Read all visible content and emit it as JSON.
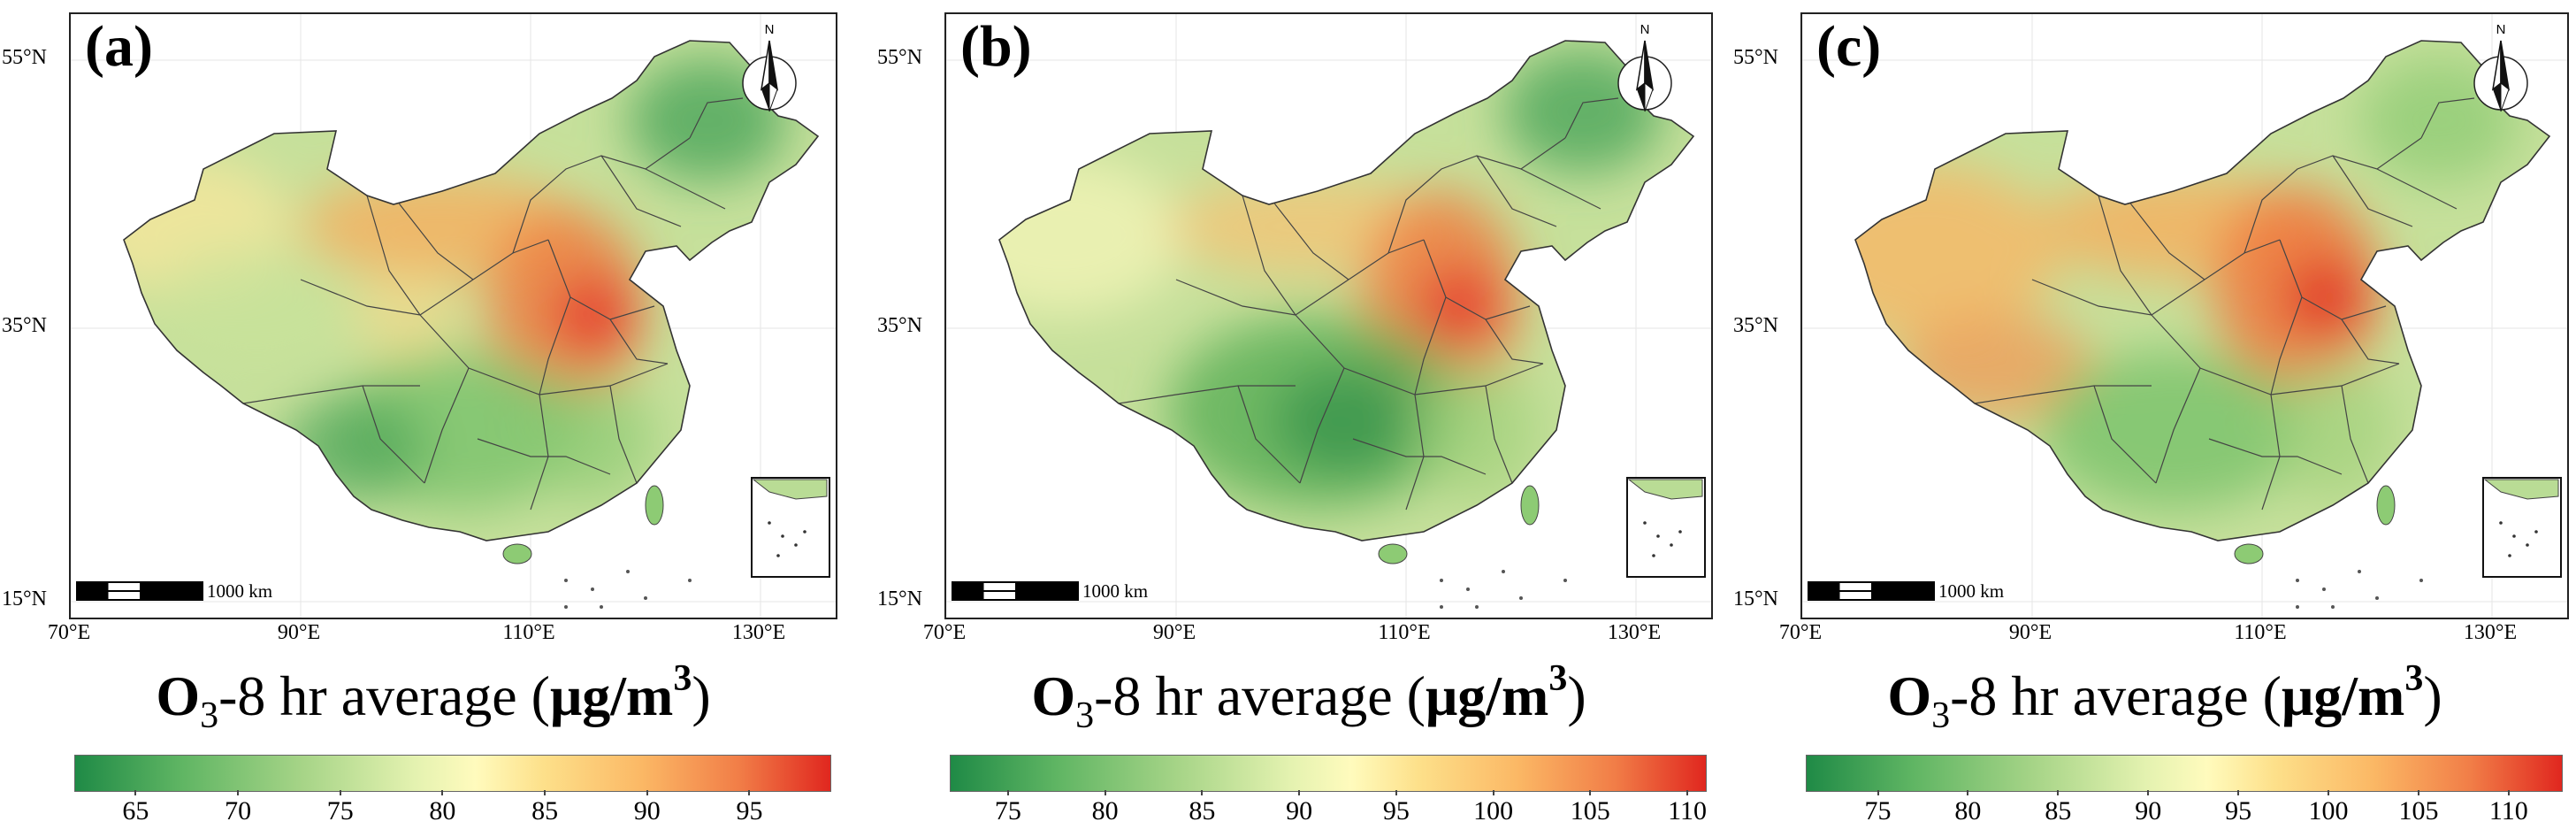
{
  "panels": [
    {
      "label": "(a)",
      "legend_min": 62,
      "legend_max": 99,
      "ticks": [
        "65",
        "70",
        "75",
        "80",
        "85",
        "90",
        "95"
      ],
      "tick_values": [
        65,
        70,
        75,
        80,
        85,
        90,
        95
      ],
      "palette": "a"
    },
    {
      "label": "(b)",
      "legend_min": 72,
      "legend_max": 111,
      "ticks": [
        "75",
        "80",
        "85",
        "90",
        "95",
        "100",
        "105",
        "110"
      ],
      "tick_values": [
        75,
        80,
        85,
        90,
        95,
        100,
        105,
        110
      ],
      "palette": "b"
    },
    {
      "label": "(c)",
      "legend_min": 71,
      "legend_max": 113,
      "ticks": [
        "75",
        "80",
        "85",
        "90",
        "95",
        "100",
        "105",
        "110"
      ],
      "tick_values": [
        75,
        80,
        85,
        90,
        95,
        100,
        105,
        110
      ],
      "palette": "c"
    }
  ],
  "axes": {
    "lat_labels": [
      "55°N",
      "35°N",
      "15°N"
    ],
    "lon_labels": [
      "70°E",
      "90°E",
      "110°E",
      "130°E"
    ]
  },
  "north_arrow": {
    "label": "N"
  },
  "scale_bar": {
    "label": "1000 km"
  },
  "colorbar_title": {
    "o": "O",
    "sub": "3",
    "rest": "-8 hr average (",
    "unit": "μg/m",
    "sup": "3",
    "close": ")"
  },
  "chart_data": [
    {
      "type": "choropleth",
      "title": "(a)",
      "colorbar_label": "O3-8 hr average (μg/m3)",
      "colorbar_range": [
        62,
        99
      ],
      "ticks": [
        65,
        70,
        75,
        80,
        85,
        90,
        95
      ],
      "xlabel_ticks": [
        "70°E",
        "90°E",
        "110°E",
        "130°E"
      ],
      "ylabel_ticks": [
        "15°N",
        "35°N",
        "55°N"
      ]
    },
    {
      "type": "choropleth",
      "title": "(b)",
      "colorbar_label": "O3-8 hr average (μg/m3)",
      "colorbar_range": [
        72,
        111
      ],
      "ticks": [
        75,
        80,
        85,
        90,
        95,
        100,
        105,
        110
      ],
      "xlabel_ticks": [
        "70°E",
        "90°E",
        "110°E",
        "130°E"
      ],
      "ylabel_ticks": [
        "15°N",
        "35°N",
        "55°N"
      ]
    },
    {
      "type": "choropleth",
      "title": "(c)",
      "colorbar_label": "O3-8 hr average (μg/m3)",
      "colorbar_range": [
        71,
        113
      ],
      "ticks": [
        75,
        80,
        85,
        90,
        95,
        100,
        105,
        110
      ],
      "xlabel_ticks": [
        "70°E",
        "90°E",
        "110°E",
        "130°E"
      ],
      "ylabel_ticks": [
        "15°N",
        "35°N",
        "55°N"
      ]
    }
  ]
}
